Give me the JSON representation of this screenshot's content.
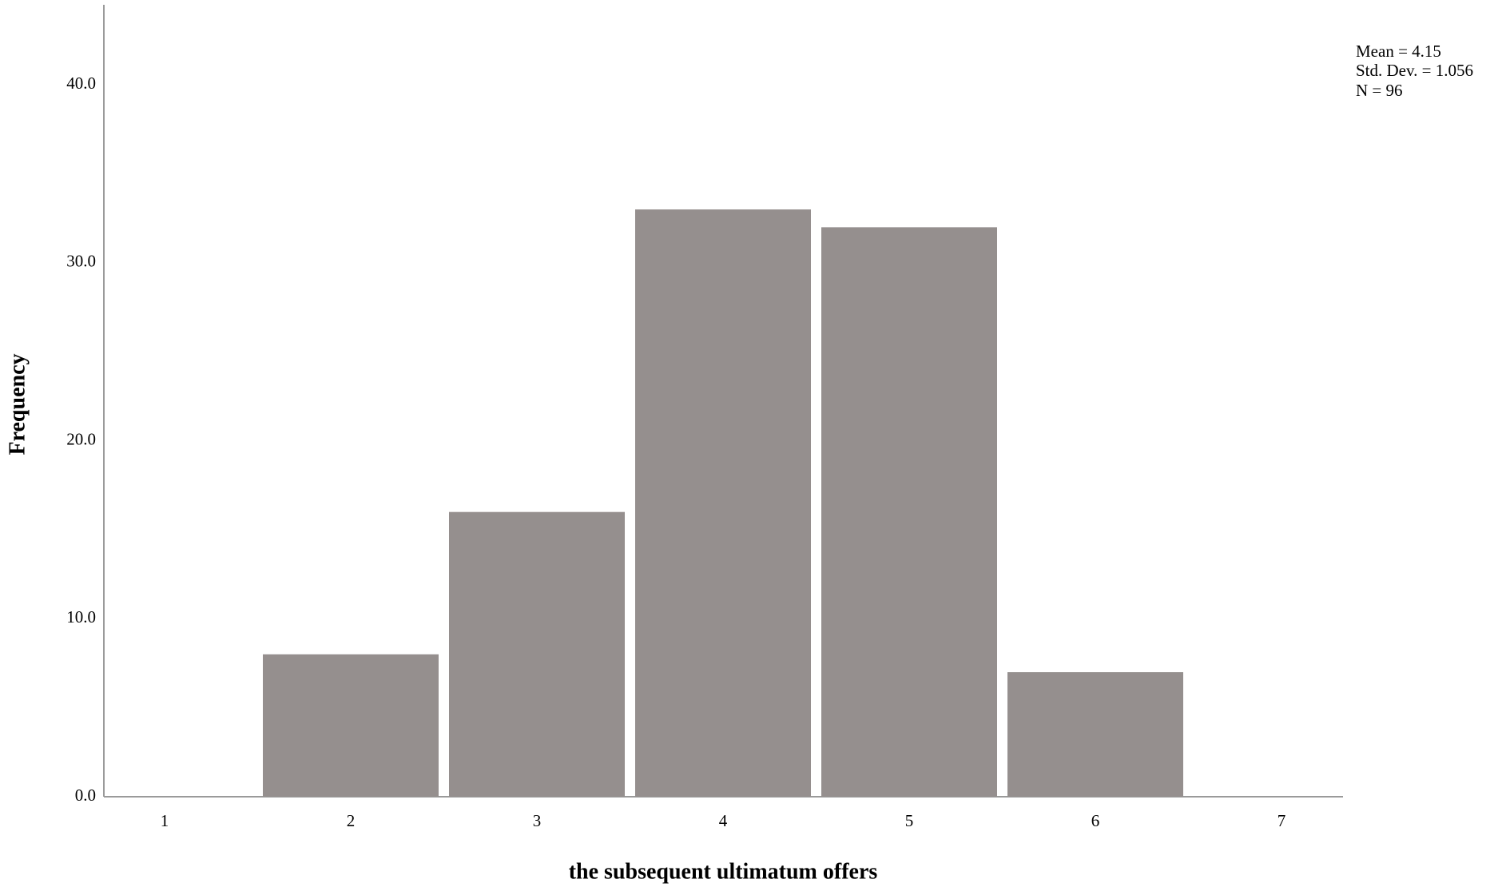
{
  "chart_data": {
    "type": "bar",
    "categories": [
      "1",
      "2",
      "3",
      "4",
      "5",
      "6",
      "7"
    ],
    "values": [
      0,
      8,
      16,
      33,
      32,
      7,
      0
    ],
    "color": "#958f8e",
    "x_label": "the subsequent ultimatum offers",
    "y_label": "Frequency",
    "ylim": [
      0,
      44.5
    ],
    "yticks": [
      {
        "value": 0,
        "label": "0.0"
      },
      {
        "value": 10,
        "label": "10.0"
      },
      {
        "value": 20,
        "label": "20.0"
      },
      {
        "value": 30,
        "label": "30.0"
      },
      {
        "value": 40,
        "label": "40.0"
      }
    ],
    "annotations": [
      "Mean = 4.15",
      "Std. Dev. = 1.056",
      "N = 96"
    ],
    "grid": false
  }
}
